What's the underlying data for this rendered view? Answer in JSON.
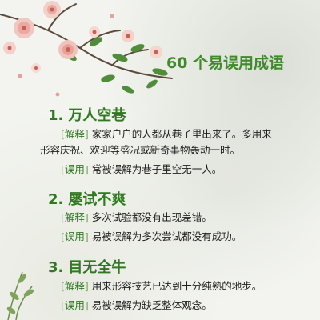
{
  "title": "60 个易误用成语",
  "colors": {
    "green": "#2f7a20",
    "tag_bracket": "#7aa35f",
    "text": "#1f1f1f",
    "bg": "#f3f4ef"
  },
  "idioms": [
    {
      "number": "1.",
      "name": "万人空巷",
      "meaning_tag": "解释",
      "meaning_line1": "家家户户的人都从巷子里出来了。多用来",
      "meaning_line2": "形容庆祝、欢迎等盛况或新奇事物轰动一时。",
      "misuse_tag": "误用",
      "misuse": "常被误解为巷子里空无一人。"
    },
    {
      "number": "2.",
      "name": "屡试不爽",
      "meaning_tag": "解释",
      "meaning_line1": "多次试验都没有出现差错。",
      "misuse_tag": "误用",
      "misuse": "易被误解为多次尝试都没有成功。"
    },
    {
      "number": "3.",
      "name": "目无全牛",
      "meaning_tag": "解释",
      "meaning_line1": "用来形容技艺已达到十分纯熟的地步。",
      "misuse_tag": "误用",
      "misuse": "易被误解为缺乏整体观念。"
    }
  ]
}
